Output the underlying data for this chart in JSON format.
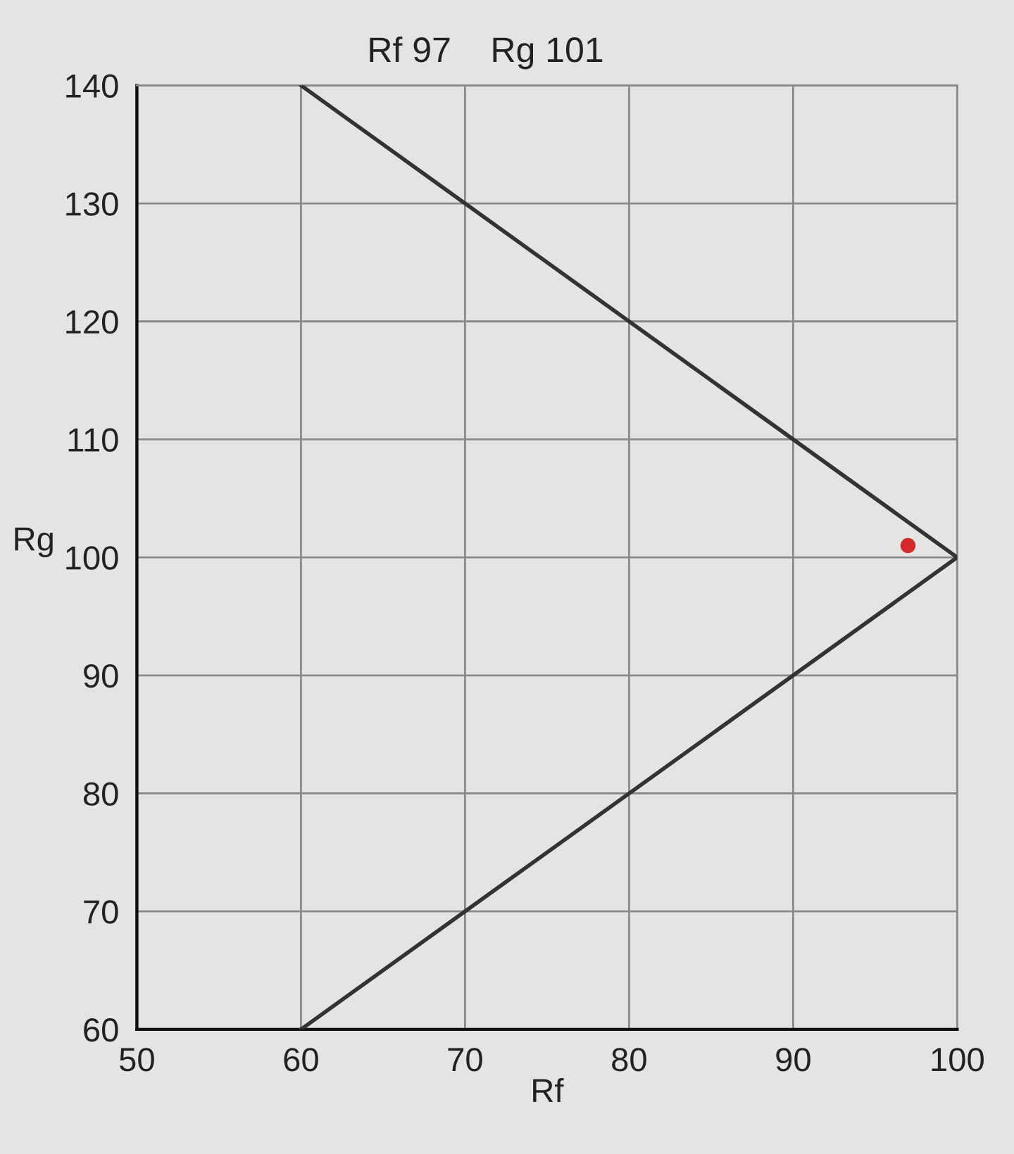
{
  "chart_data": {
    "type": "line",
    "title": "Rf 97    Rg 101",
    "xlabel": "Rf",
    "ylabel": "Rg",
    "xlim": [
      50,
      100
    ],
    "ylim": [
      60,
      140
    ],
    "xticks": [
      50,
      60,
      70,
      80,
      90,
      100
    ],
    "yticks": [
      60,
      70,
      80,
      90,
      100,
      110,
      120,
      130,
      140
    ],
    "grid": true,
    "series": [
      {
        "x": [
          60,
          100,
          60
        ],
        "values": [
          140,
          100,
          60
        ],
        "color": "#333333"
      },
      {
        "type": "scatter",
        "x": [
          97
        ],
        "values": [
          101
        ],
        "color": "#d42a2a",
        "marker": "circle"
      }
    ]
  }
}
